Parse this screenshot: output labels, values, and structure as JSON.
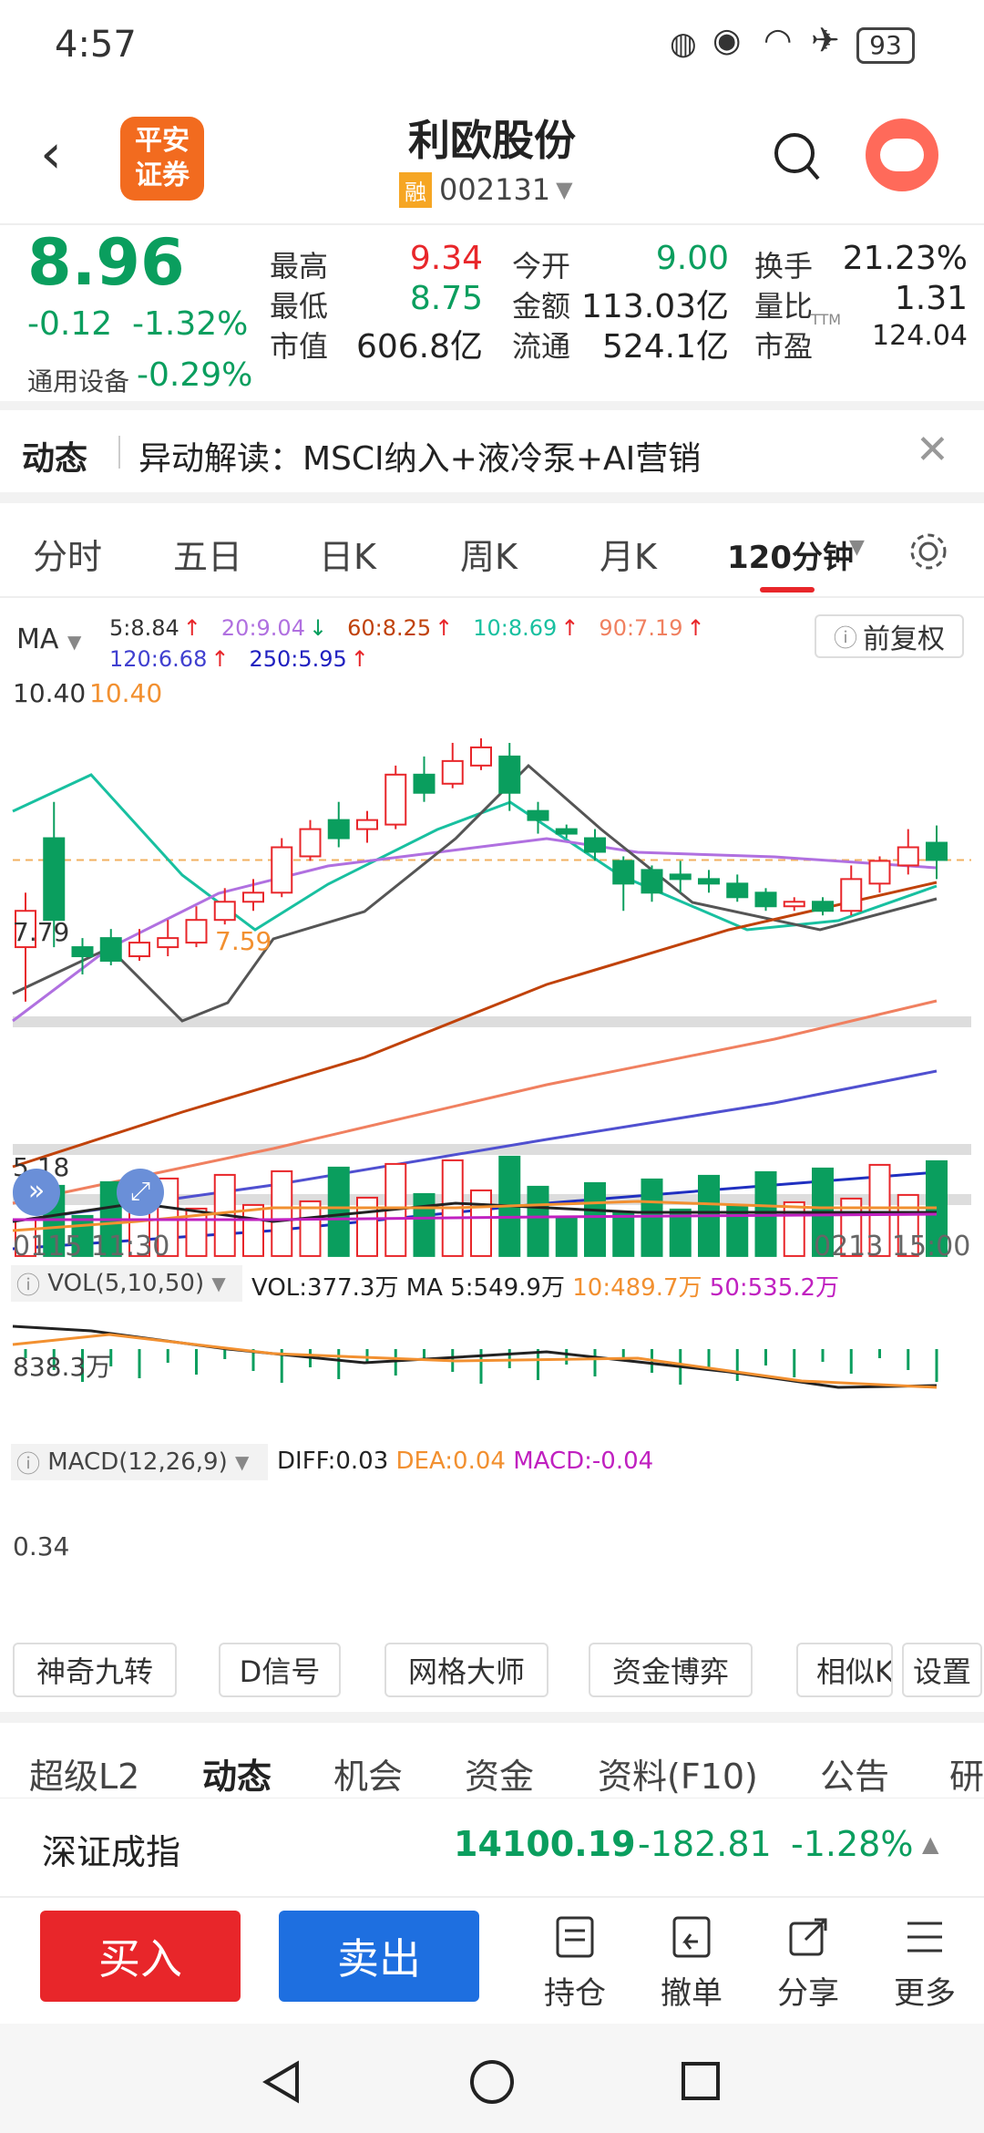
{
  "status": {
    "time": "4:57",
    "battery": "93"
  },
  "header": {
    "title": "利欧股份",
    "rong": "融",
    "code": "002131",
    "logo_line1": "平安",
    "logo_line2": "证券"
  },
  "quote": {
    "price": "8.96",
    "change": "-0.12",
    "pct": "-1.32%",
    "sector": "通用设备",
    "sector_pct": "-0.29%",
    "cells": [
      {
        "label": "最高",
        "value": "9.34",
        "tone": "red"
      },
      {
        "label": "今开",
        "value": "9.00",
        "tone": "green"
      },
      {
        "label": "换手",
        "value": "21.23%",
        "tone": "dark"
      },
      {
        "label": "最低",
        "value": "8.75",
        "tone": "green"
      },
      {
        "label": "金额",
        "value": "113.03亿",
        "tone": "dark"
      },
      {
        "label": "量比",
        "value": "1.31",
        "tone": "dark"
      },
      {
        "label": "市值",
        "value": "606.8亿",
        "tone": "dark"
      },
      {
        "label": "流通",
        "value": "524.1亿",
        "tone": "dark"
      },
      {
        "label": "市盈",
        "value": "124.04",
        "tone": "dark",
        "sup": "TTM"
      }
    ]
  },
  "news": {
    "tag": "动态",
    "text": "异动解读：MSCI纳入+液冷泵+AI营销"
  },
  "tabs": [
    {
      "label": "分时"
    },
    {
      "label": "五日"
    },
    {
      "label": "日K"
    },
    {
      "label": "周K"
    },
    {
      "label": "月K"
    },
    {
      "label": "120分钟",
      "active": true
    }
  ],
  "ma": {
    "label": "MA",
    "items": [
      {
        "text": "5:8.84",
        "arrow": "↑",
        "color": "#333333"
      },
      {
        "text": "20:9.04",
        "arrow": "↓",
        "color": "#b070e0"
      },
      {
        "text": "60:8.25",
        "arrow": "↑",
        "color": "#c0420a"
      },
      {
        "text": "10:8.69",
        "arrow": "↑",
        "color": "#18c0a0"
      },
      {
        "text": "90:7.19",
        "arrow": "↑",
        "color": "#f08060"
      },
      {
        "text": "120:6.68",
        "arrow": "↑",
        "color": "#4040d0"
      },
      {
        "text": "250:5.95",
        "arrow": "↑",
        "color": "#2020c0"
      }
    ],
    "fuquan": "前复权"
  },
  "axis": {
    "high": "10.40",
    "high_mark": "10.40",
    "mid": "7.79",
    "low_mark": "7.59",
    "bottom": "5.18",
    "start": "0115 11:30",
    "end": "0213 15:00"
  },
  "vol": {
    "label": "VOL(5,10,50)",
    "v": "VOL:377.3万",
    "ma5": "MA 5:549.9万",
    "ma10": "10:489.7万",
    "ma50": "50:535.2万",
    "axis": "838.3万"
  },
  "macd": {
    "label": "MACD(12,26,9)",
    "diff": "DIFF:0.03",
    "dea": "DEA:0.04",
    "macd": "MACD:-0.04",
    "axis": "0.34"
  },
  "tools": [
    {
      "label": "神奇九转"
    },
    {
      "label": "D信号"
    },
    {
      "label": "网格大师"
    },
    {
      "label": "资金博弈"
    },
    {
      "label": "相似K"
    },
    {
      "label": "设置"
    }
  ],
  "bottom_tabs": [
    {
      "label": "超级L2"
    },
    {
      "label": "动态",
      "active": true
    },
    {
      "label": "机会"
    },
    {
      "label": "资金"
    },
    {
      "label": "资料(F10)"
    },
    {
      "label": "公告"
    },
    {
      "label": "研"
    }
  ],
  "index": {
    "name": "深证成指",
    "value": "14100.19",
    "change": "-182.81",
    "pct": "-1.28%"
  },
  "actions": {
    "buy": "买入",
    "sell": "卖出",
    "items": [
      {
        "label": "持仓"
      },
      {
        "label": "撤单"
      },
      {
        "label": "分享"
      },
      {
        "label": "更多"
      }
    ]
  },
  "chart_data": {
    "type": "candlestick",
    "x_start": "0115 11:30",
    "x_end": "0213 15:00",
    "ylim": [
      5.18,
      10.4
    ],
    "candles": [
      {
        "o": 8.0,
        "c": 8.4,
        "h": 8.6,
        "l": 7.4
      },
      {
        "o": 9.2,
        "c": 8.3,
        "h": 9.6,
        "l": 8.0
      },
      {
        "o": 8.0,
        "c": 7.9,
        "h": 8.1,
        "l": 7.7
      },
      {
        "o": 8.1,
        "c": 7.85,
        "h": 8.2,
        "l": 7.8
      },
      {
        "o": 7.9,
        "c": 8.05,
        "h": 8.2,
        "l": 7.85
      },
      {
        "o": 8.0,
        "c": 8.1,
        "h": 8.3,
        "l": 7.9
      },
      {
        "o": 8.05,
        "c": 8.3,
        "h": 8.45,
        "l": 8.0
      },
      {
        "o": 8.3,
        "c": 8.5,
        "h": 8.65,
        "l": 8.25
      },
      {
        "o": 8.5,
        "c": 8.6,
        "h": 8.75,
        "l": 8.4
      },
      {
        "o": 8.6,
        "c": 9.1,
        "h": 9.2,
        "l": 8.55
      },
      {
        "o": 9.0,
        "c": 9.3,
        "h": 9.4,
        "l": 8.95
      },
      {
        "o": 9.4,
        "c": 9.2,
        "h": 9.6,
        "l": 9.1
      },
      {
        "o": 9.3,
        "c": 9.4,
        "h": 9.5,
        "l": 9.15
      },
      {
        "o": 9.35,
        "c": 9.9,
        "h": 10.0,
        "l": 9.3
      },
      {
        "o": 9.9,
        "c": 9.7,
        "h": 10.1,
        "l": 9.6
      },
      {
        "o": 9.8,
        "c": 10.05,
        "h": 10.25,
        "l": 9.75
      },
      {
        "o": 10.0,
        "c": 10.2,
        "h": 10.3,
        "l": 9.95
      },
      {
        "o": 10.1,
        "c": 9.7,
        "h": 10.25,
        "l": 9.5
      },
      {
        "o": 9.5,
        "c": 9.4,
        "h": 9.6,
        "l": 9.25
      },
      {
        "o": 9.3,
        "c": 9.25,
        "h": 9.35,
        "l": 9.2
      },
      {
        "o": 9.2,
        "c": 9.05,
        "h": 9.3,
        "l": 8.95
      },
      {
        "o": 8.95,
        "c": 8.7,
        "h": 9.0,
        "l": 8.4
      },
      {
        "o": 8.85,
        "c": 8.6,
        "h": 8.9,
        "l": 8.5
      },
      {
        "o": 8.8,
        "c": 8.75,
        "h": 8.95,
        "l": 8.6
      },
      {
        "o": 8.75,
        "c": 8.7,
        "h": 8.85,
        "l": 8.6
      },
      {
        "o": 8.7,
        "c": 8.55,
        "h": 8.8,
        "l": 8.5
      },
      {
        "o": 8.6,
        "c": 8.45,
        "h": 8.65,
        "l": 8.4
      },
      {
        "o": 8.45,
        "c": 8.5,
        "h": 8.55,
        "l": 8.4
      },
      {
        "o": 8.5,
        "c": 8.4,
        "h": 8.55,
        "l": 8.35
      },
      {
        "o": 8.4,
        "c": 8.75,
        "h": 8.9,
        "l": 8.35
      },
      {
        "o": 8.7,
        "c": 8.95,
        "h": 9.0,
        "l": 8.6
      },
      {
        "o": 8.9,
        "c": 9.1,
        "h": 9.3,
        "l": 8.8
      },
      {
        "o": 9.15,
        "c": 8.96,
        "h": 9.34,
        "l": 8.75
      }
    ]
  }
}
